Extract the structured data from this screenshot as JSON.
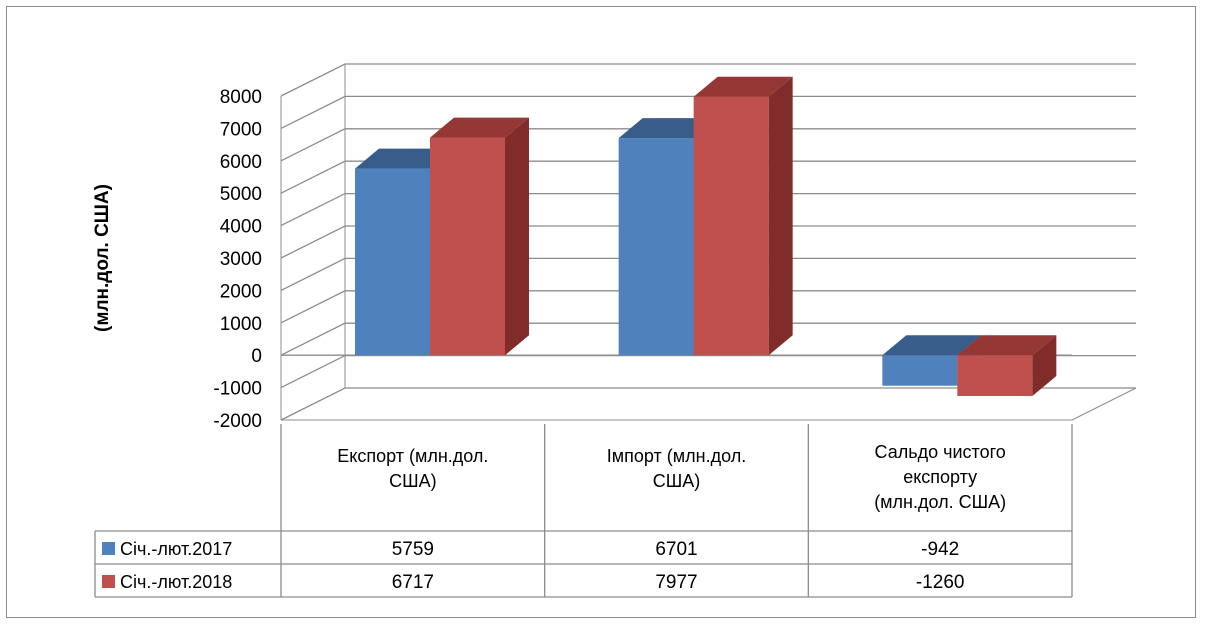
{
  "chart_data": {
    "type": "bar",
    "ylabel": "(млн.дол.  США)",
    "ylim": [
      -2000,
      8000
    ],
    "yticks": [
      "8000",
      "7000",
      "6000",
      "5000",
      "4000",
      "3000",
      "2000",
      "1000",
      "0",
      "-1000",
      "-2000"
    ],
    "categories": [
      [
        "Експорт (млн.дол.",
        "США)"
      ],
      [
        "Імпорт (млн.дол.",
        "США)"
      ],
      [
        "Сальдо чистого",
        "експорту",
        "(млн.дол.  США)"
      ]
    ],
    "series": [
      {
        "name": "Січ.-лют.2017",
        "values": [
          5759,
          6701,
          -942
        ],
        "labels": [
          "5759",
          "6701",
          "-942"
        ],
        "color": "#4f81bd",
        "top_color": "#385d8a",
        "side_color": "#3a6090"
      },
      {
        "name": "Січ.-лют.2018",
        "values": [
          6717,
          7977,
          -1260
        ],
        "labels": [
          "6717",
          "7977",
          "-1260"
        ],
        "color": "#c0504d",
        "top_color": "#953735",
        "side_color": "#7f2c2a"
      }
    ],
    "grid": true,
    "legend": "data-table"
  }
}
